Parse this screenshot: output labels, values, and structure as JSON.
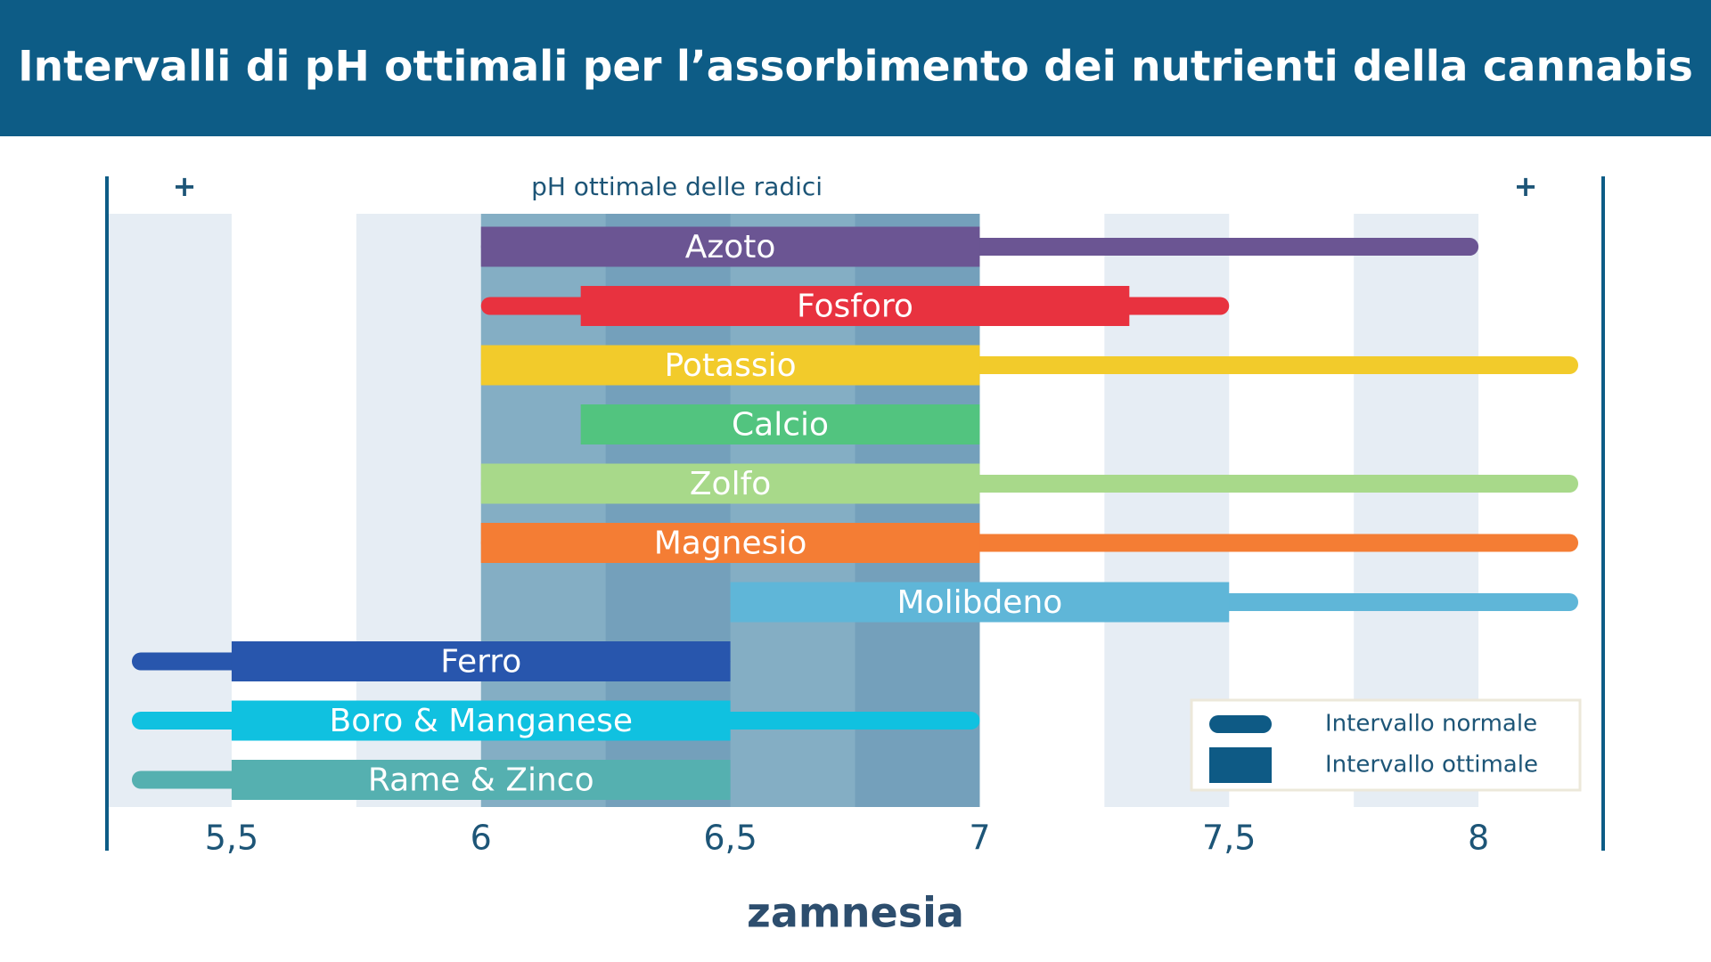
{
  "chart_data": {
    "type": "range",
    "title": "Intervalli di pH ottimali per l’assorbimento dei nutrienti della cannabis",
    "zone_label": "pH ottimale delle radici",
    "zone": [
      6,
      7
    ],
    "left_marker": "+",
    "right_marker": "+",
    "xlim": [
      5.25,
      8.25
    ],
    "xticks": [
      {
        "value": 5.5,
        "label": "5,5"
      },
      6,
      {
        "value": 6.5,
        "label": "6,5"
      },
      7,
      {
        "value": 7.5,
        "label": "7,5"
      },
      8
    ],
    "legend": {
      "position": "bottom-right",
      "color": "#0e5a85",
      "normal_label": "Intervallo normale",
      "optimal_label": "Intervallo ottimale"
    },
    "series": [
      {
        "name": "Azoto",
        "color": "#6b5593",
        "normal": [
          6,
          8
        ],
        "optimal": [
          6,
          7
        ]
      },
      {
        "name": "Fosforo",
        "color": "#e8323f",
        "normal": [
          6,
          7.5
        ],
        "optimal": [
          6.2,
          7.3
        ]
      },
      {
        "name": "Potassio",
        "color": "#f2cb2b",
        "normal": [
          6,
          8.2
        ],
        "optimal": [
          6,
          7
        ]
      },
      {
        "name": "Calcio",
        "color": "#52c47f",
        "optimal": [
          6.2,
          7
        ]
      },
      {
        "name": "Zolfo",
        "color": "#a8d98a",
        "normal": [
          6,
          8.2
        ],
        "optimal": [
          6,
          7
        ]
      },
      {
        "name": "Magnesio",
        "color": "#f47d34",
        "normal": [
          6,
          8.2
        ],
        "optimal": [
          6,
          7
        ]
      },
      {
        "name": "Molibdeno",
        "color": "#5fb6d8",
        "normal": [
          6.5,
          8.2
        ],
        "optimal": [
          6.5,
          7.5
        ]
      },
      {
        "name": "Ferro",
        "color": "#2856ad",
        "normal": [
          5.3,
          6.5
        ],
        "optimal": [
          5.5,
          6.5
        ]
      },
      {
        "name": "Boro & Manganese",
        "color": "#10c1e0",
        "normal": [
          5.3,
          7
        ],
        "optimal": [
          5.5,
          6.5
        ]
      },
      {
        "name": "Rame & Zinco",
        "color": "#55b0b0",
        "normal": [
          5.3,
          6.5
        ],
        "optimal": [
          5.5,
          6.5
        ]
      }
    ]
  },
  "footer": {
    "logo": "zamnesia"
  }
}
